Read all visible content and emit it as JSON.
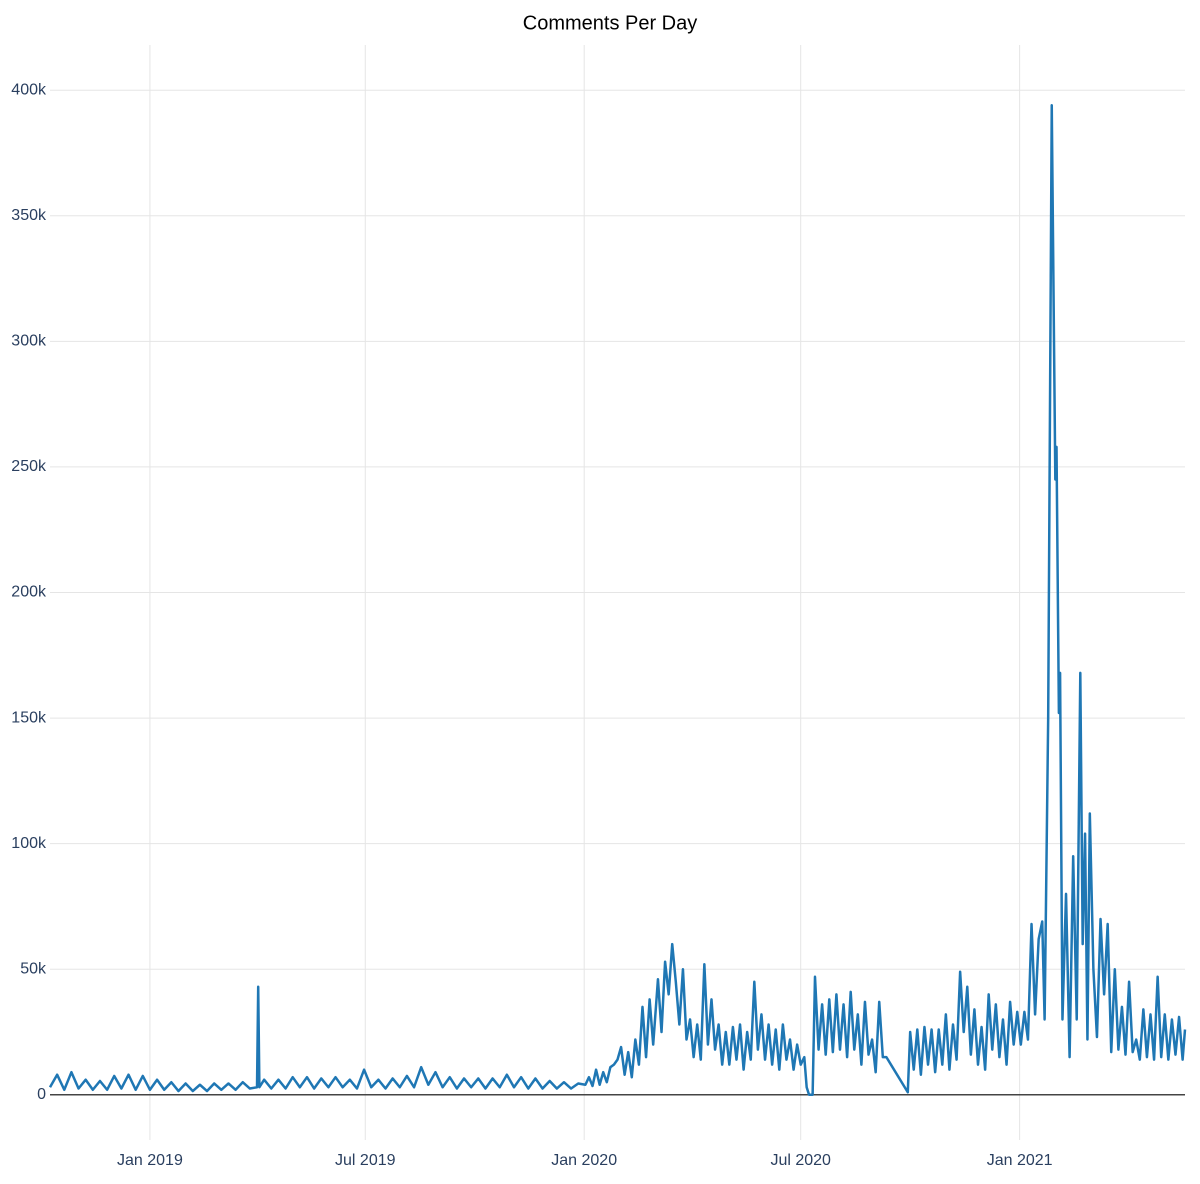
{
  "chart_data": {
    "type": "line",
    "title": "Comments Per Day",
    "x": [
      "2018-10-09",
      "2018-10-15",
      "2018-10-21",
      "2018-10-27",
      "2018-11-02",
      "2018-11-08",
      "2018-11-14",
      "2018-11-20",
      "2018-11-26",
      "2018-12-02",
      "2018-12-08",
      "2018-12-14",
      "2018-12-20",
      "2018-12-26",
      "2019-01-01",
      "2019-01-07",
      "2019-01-13",
      "2019-01-19",
      "2019-01-25",
      "2019-01-31",
      "2019-02-06",
      "2019-02-12",
      "2019-02-18",
      "2019-02-24",
      "2019-03-02",
      "2019-03-08",
      "2019-03-14",
      "2019-03-20",
      "2019-03-26",
      "2019-04-01",
      "2019-04-02",
      "2019-04-03",
      "2019-04-07",
      "2019-04-13",
      "2019-04-19",
      "2019-04-25",
      "2019-05-01",
      "2019-05-07",
      "2019-05-13",
      "2019-05-19",
      "2019-05-25",
      "2019-05-31",
      "2019-06-06",
      "2019-06-12",
      "2019-06-18",
      "2019-06-24",
      "2019-06-30",
      "2019-07-06",
      "2019-07-12",
      "2019-07-18",
      "2019-07-24",
      "2019-07-30",
      "2019-08-05",
      "2019-08-11",
      "2019-08-17",
      "2019-08-23",
      "2019-08-29",
      "2019-09-04",
      "2019-09-10",
      "2019-09-16",
      "2019-09-22",
      "2019-09-28",
      "2019-10-04",
      "2019-10-10",
      "2019-10-16",
      "2019-10-22",
      "2019-10-28",
      "2019-11-03",
      "2019-11-09",
      "2019-11-15",
      "2019-11-21",
      "2019-11-27",
      "2019-12-03",
      "2019-12-09",
      "2019-12-15",
      "2019-12-21",
      "2019-12-27",
      "2020-01-02",
      "2020-01-05",
      "2020-01-08",
      "2020-01-11",
      "2020-01-14",
      "2020-01-17",
      "2020-01-20",
      "2020-01-23",
      "2020-01-26",
      "2020-01-29",
      "2020-02-01",
      "2020-02-04",
      "2020-02-07",
      "2020-02-10",
      "2020-02-13",
      "2020-02-16",
      "2020-02-19",
      "2020-02-22",
      "2020-02-25",
      "2020-02-28",
      "2020-03-03",
      "2020-03-06",
      "2020-03-09",
      "2020-03-12",
      "2020-03-15",
      "2020-03-18",
      "2020-03-21",
      "2020-03-24",
      "2020-03-27",
      "2020-03-30",
      "2020-04-02",
      "2020-04-05",
      "2020-04-08",
      "2020-04-11",
      "2020-04-14",
      "2020-04-17",
      "2020-04-20",
      "2020-04-23",
      "2020-04-26",
      "2020-04-29",
      "2020-05-02",
      "2020-05-05",
      "2020-05-08",
      "2020-05-11",
      "2020-05-14",
      "2020-05-17",
      "2020-05-20",
      "2020-05-23",
      "2020-05-26",
      "2020-05-29",
      "2020-06-01",
      "2020-06-04",
      "2020-06-07",
      "2020-06-10",
      "2020-06-13",
      "2020-06-16",
      "2020-06-19",
      "2020-06-22",
      "2020-06-25",
      "2020-06-28",
      "2020-07-01",
      "2020-07-04",
      "2020-07-06",
      "2020-07-08",
      "2020-07-11",
      "2020-07-13",
      "2020-07-16",
      "2020-07-19",
      "2020-07-22",
      "2020-07-25",
      "2020-07-28",
      "2020-07-31",
      "2020-08-03",
      "2020-08-06",
      "2020-08-09",
      "2020-08-12",
      "2020-08-15",
      "2020-08-18",
      "2020-08-21",
      "2020-08-24",
      "2020-08-27",
      "2020-08-30",
      "2020-09-02",
      "2020-09-05",
      "2020-09-08",
      "2020-09-11",
      "2020-09-29",
      "2020-10-01",
      "2020-10-04",
      "2020-10-07",
      "2020-10-10",
      "2020-10-13",
      "2020-10-16",
      "2020-10-19",
      "2020-10-22",
      "2020-10-25",
      "2020-10-28",
      "2020-10-31",
      "2020-11-03",
      "2020-11-06",
      "2020-11-09",
      "2020-11-12",
      "2020-11-15",
      "2020-11-18",
      "2020-11-21",
      "2020-11-24",
      "2020-11-27",
      "2020-11-30",
      "2020-12-03",
      "2020-12-06",
      "2020-12-09",
      "2020-12-12",
      "2020-12-15",
      "2020-12-18",
      "2020-12-21",
      "2020-12-24",
      "2020-12-27",
      "2020-12-30",
      "2021-01-02",
      "2021-01-05",
      "2021-01-08",
      "2021-01-11",
      "2021-01-14",
      "2021-01-17",
      "2021-01-20",
      "2021-01-22",
      "2021-01-25",
      "2021-01-28",
      "2021-01-31",
      "2021-02-01",
      "2021-02-03",
      "2021-02-04",
      "2021-02-06",
      "2021-02-09",
      "2021-02-12",
      "2021-02-15",
      "2021-02-18",
      "2021-02-21",
      "2021-02-23",
      "2021-02-25",
      "2021-02-27",
      "2021-03-01",
      "2021-03-04",
      "2021-03-07",
      "2021-03-10",
      "2021-03-13",
      "2021-03-16",
      "2021-03-19",
      "2021-03-22",
      "2021-03-25",
      "2021-03-28",
      "2021-03-31",
      "2021-04-03",
      "2021-04-06",
      "2021-04-09",
      "2021-04-12",
      "2021-04-15",
      "2021-04-18",
      "2021-04-21",
      "2021-04-24",
      "2021-04-27",
      "2021-04-30",
      "2021-05-03",
      "2021-05-06",
      "2021-05-09",
      "2021-05-12",
      "2021-05-15",
      "2021-05-18",
      "2021-05-20"
    ],
    "values": [
      3000,
      8000,
      2000,
      9000,
      2500,
      6000,
      2000,
      5500,
      2000,
      7500,
      2500,
      8000,
      2000,
      7500,
      2000,
      6000,
      2000,
      5000,
      1500,
      4500,
      1500,
      4000,
      1500,
      4500,
      2000,
      4500,
      2000,
      5000,
      2500,
      3000,
      43000,
      3000,
      6000,
      2500,
      6000,
      2500,
      7000,
      3000,
      7000,
      2500,
      6500,
      3000,
      7000,
      3000,
      6000,
      2500,
      10000,
      3000,
      6000,
      2500,
      6500,
      3000,
      7500,
      3000,
      11000,
      4000,
      9000,
      3000,
      7000,
      2500,
      6500,
      3000,
      6500,
      2500,
      6500,
      3000,
      8000,
      3000,
      7000,
      2500,
      6500,
      2500,
      5500,
      2500,
      5000,
      2500,
      4500,
      4000,
      7000,
      3500,
      10000,
      4000,
      9000,
      5000,
      11000,
      12000,
      14000,
      19000,
      8000,
      17000,
      7000,
      22000,
      12000,
      35000,
      15000,
      38000,
      20000,
      46000,
      25000,
      53000,
      40000,
      60000,
      45000,
      28000,
      50000,
      22000,
      30000,
      15000,
      28000,
      14000,
      52000,
      20000,
      38000,
      18000,
      28000,
      12000,
      25000,
      12000,
      27000,
      14000,
      28000,
      10000,
      25000,
      14000,
      45000,
      18000,
      32000,
      14000,
      28000,
      12000,
      26000,
      10000,
      28000,
      14000,
      22000,
      10000,
      20000,
      12000,
      15000,
      3000,
      0,
      0,
      47000,
      18000,
      36000,
      16000,
      38000,
      17000,
      40000,
      18000,
      36000,
      15000,
      41000,
      18000,
      32000,
      12000,
      37000,
      16000,
      22000,
      9000,
      37000,
      15000,
      15000,
      1000,
      25000,
      10000,
      26000,
      8000,
      27000,
      12000,
      26000,
      9000,
      26000,
      12000,
      32000,
      10000,
      28000,
      14000,
      49000,
      25000,
      43000,
      16000,
      34000,
      12000,
      27000,
      10000,
      40000,
      18000,
      36000,
      15000,
      30000,
      12000,
      37000,
      20000,
      33000,
      20000,
      33000,
      22000,
      68000,
      32000,
      62000,
      69000,
      30000,
      150000,
      394000,
      245000,
      258000,
      152000,
      168000,
      30000,
      80000,
      15000,
      95000,
      30000,
      168000,
      60000,
      104000,
      22000,
      112000,
      50000,
      23000,
      70000,
      40000,
      68000,
      17000,
      50000,
      18000,
      35000,
      16000,
      45000,
      17000,
      22000,
      14000,
      34000,
      15000,
      32000,
      14000,
      47000,
      15000,
      32000,
      14000,
      30000,
      16000,
      31000,
      14000,
      26000
    ],
    "color": "#1f77b4",
    "xlim": [
      "2018-10-09",
      "2021-05-20"
    ],
    "xticks": [
      {
        "value": "2019-01-01",
        "label": "Jan 2019"
      },
      {
        "value": "2019-07-01",
        "label": "Jul 2019"
      },
      {
        "value": "2020-01-01",
        "label": "Jan 2020"
      },
      {
        "value": "2020-07-01",
        "label": "Jul 2020"
      },
      {
        "value": "2021-01-01",
        "label": "Jan 2021"
      }
    ],
    "ylim": [
      -18000,
      418000
    ],
    "yticks": [
      0,
      {
        "value": 50000,
        "label": "50k"
      },
      {
        "value": 100000,
        "label": "100k"
      },
      {
        "value": 150000,
        "label": "150k"
      },
      {
        "value": 200000,
        "label": "200k"
      },
      {
        "value": 250000,
        "label": "250k"
      },
      {
        "value": 300000,
        "label": "300k"
      },
      {
        "value": 350000,
        "label": "350k"
      },
      {
        "value": 400000,
        "label": "400k"
      }
    ],
    "grid": true
  }
}
